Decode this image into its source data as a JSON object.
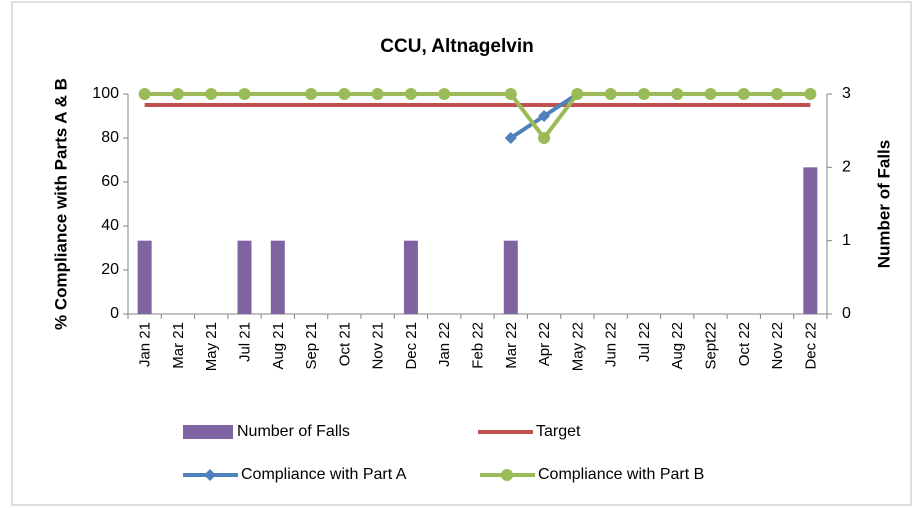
{
  "chart_data": {
    "type": "combo",
    "title": "CCU, Altnagelvin",
    "y_label": "% Compliance with Parts A & B",
    "y2_label": "Number of Falls",
    "categories": [
      "Jan 21",
      "Mar 21",
      "May 21",
      "Jul 21",
      "Aug 21",
      "Sep 21",
      "Oct 21",
      "Nov 21",
      "Dec 21",
      "Jan 22",
      "Feb 22",
      "Mar 22",
      "Apr 22",
      "May 22",
      "Jun 22",
      "Jul 22",
      "Aug 22",
      "Sept22",
      "Oct 22",
      "Nov 22",
      "Dec 22"
    ],
    "ylim": [
      0,
      100
    ],
    "yticks": [
      0,
      20,
      40,
      60,
      80,
      100
    ],
    "y2lim": [
      0,
      3
    ],
    "y2ticks": [
      0,
      1,
      2,
      3
    ],
    "connect_gaps": true,
    "series": [
      {
        "name": "Number of Falls",
        "type": "bar",
        "axis": "y2",
        "color": "#8064a2",
        "values": [
          1,
          0,
          0,
          1,
          1,
          0,
          0,
          0,
          1,
          0,
          0,
          1,
          0,
          0,
          0,
          0,
          0,
          0,
          0,
          0,
          2
        ]
      },
      {
        "name": "Target",
        "type": "line",
        "color": "#c0504d",
        "values": [
          95,
          95,
          95,
          95,
          95,
          95,
          95,
          95,
          95,
          95,
          95,
          95,
          95,
          95,
          95,
          95,
          95,
          95,
          95,
          95,
          95
        ]
      },
      {
        "name": "Compliance with Part A",
        "type": "line",
        "marker": "diamond",
        "color": "#4f81bd",
        "values": [
          null,
          null,
          null,
          null,
          null,
          null,
          null,
          null,
          null,
          null,
          null,
          80,
          90,
          100,
          100,
          100,
          100,
          100,
          100,
          100,
          100
        ]
      },
      {
        "name": "Compliance with Part B",
        "type": "line",
        "marker": "circle",
        "color": "#9bbb59",
        "values": [
          100,
          100,
          100,
          100,
          null,
          100,
          100,
          100,
          100,
          100,
          null,
          100,
          80,
          100,
          100,
          100,
          100,
          100,
          100,
          100,
          100
        ]
      }
    ]
  }
}
